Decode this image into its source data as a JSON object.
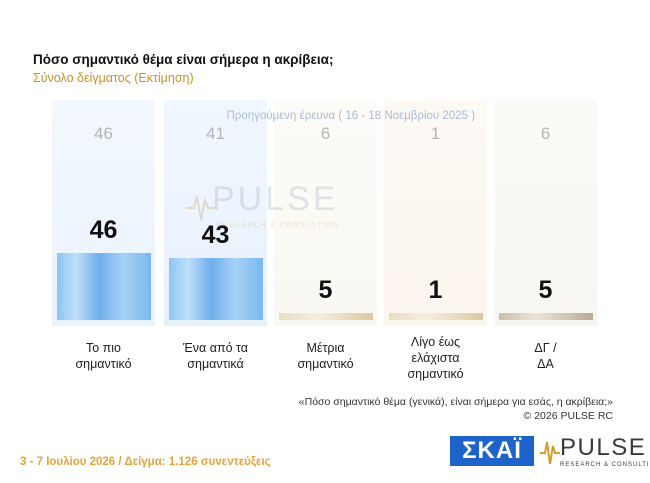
{
  "header": {
    "title": "Πόσο σημαντικό θέμα είναι σήμερα η ακρίβεια;",
    "subtitle": "Σύνολο δείγματος (Εκτίμηση)"
  },
  "chart_data": {
    "type": "bar",
    "title": "Πόσο σημαντικό θέμα είναι σήμερα η ακρίβεια;",
    "subtitle": "Σύνολο δείγματος (Εκτίμηση)",
    "categories": [
      [
        "Το πιο",
        "σημαντικό"
      ],
      [
        "Ένα από τα",
        "σημαντικά"
      ],
      [
        "Μέτρια",
        "σημαντικό"
      ],
      [
        "Λίγο έως",
        "ελάχιστα",
        "σημαντικό"
      ],
      [
        "ΔΓ /",
        "ΔΑ"
      ]
    ],
    "series": [
      {
        "name": "Προηγούμενη έρευνα ( 16 - 18 Νοεμβρίου 2025 )",
        "values": [
          46,
          41,
          6,
          1,
          6
        ]
      },
      {
        "values": [
          46,
          43,
          5,
          1,
          5
        ]
      }
    ],
    "ylim": [
      0,
      100
    ],
    "bar_colors": [
      "#8ec4f2",
      "#8ec4f2",
      "#e9dcc1",
      "#e9dcc1",
      "#cbbfac"
    ]
  },
  "notes": {
    "question": "«Πόσο σημαντικό θέμα (γενικά), είναι σήμερα για εσάς, η ακρίβεια;»",
    "copyright": "©  2026  PULSE RC"
  },
  "footer": {
    "text": "3 - 7  Ιουλίου 2026  /  Δείγμα:  1.126 συνεντεύξεις"
  },
  "logos": {
    "skai": "ΣΚΑΪ",
    "pulse": "PULSE",
    "pulse_sub": "RESEARCH & CONSULTING"
  }
}
